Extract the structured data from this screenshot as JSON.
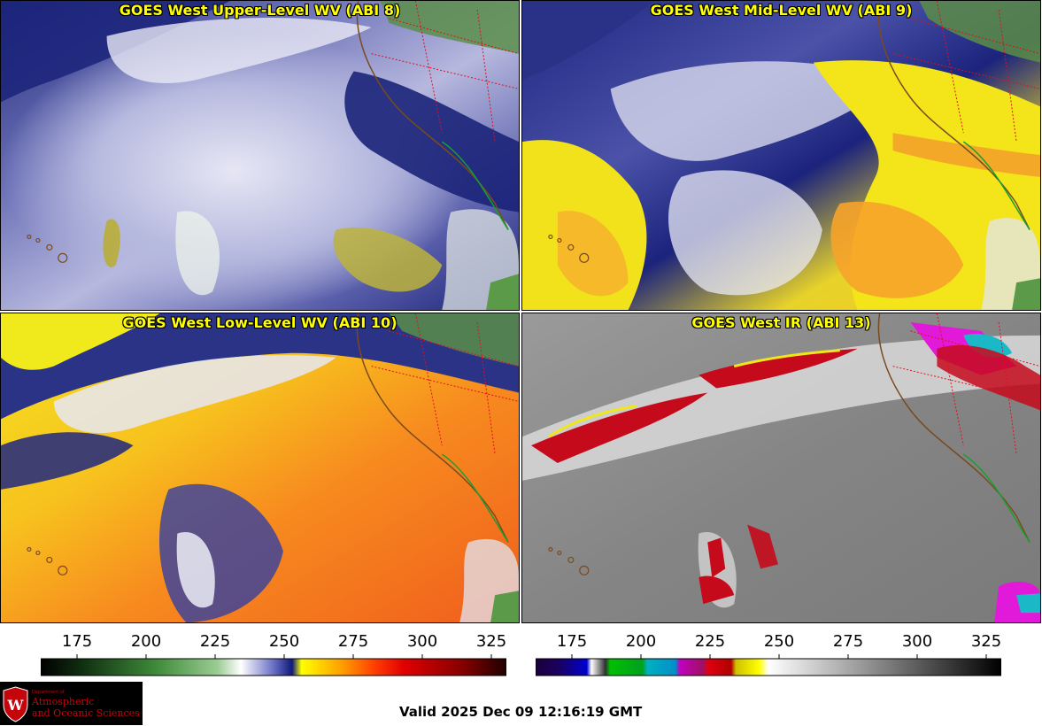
{
  "panels": {
    "upper_left": {
      "title": "GOES West Upper-Level WV (ABI 8)"
    },
    "upper_right": {
      "title": "GOES West Mid-Level WV (ABI 9)"
    },
    "lower_left": {
      "title": "GOES West Low-Level WV (ABI 10)"
    },
    "lower_right": {
      "title": "GOES West IR (ABI 13)"
    }
  },
  "scales": {
    "left": {
      "ticks": [
        "175",
        "200",
        "225",
        "250",
        "275",
        "300",
        "325"
      ],
      "colormap": "water-vapor"
    },
    "right": {
      "ticks": [
        "175",
        "200",
        "225",
        "250",
        "275",
        "300",
        "325"
      ],
      "colormap": "infrared"
    }
  },
  "logo": {
    "department_of": "Department of",
    "line1": "Atmospheric",
    "line2": "and Oceanic Sciences",
    "seal_letter": "W"
  },
  "footer": {
    "valid_time": "Valid 2025 Dec 09 12:16:19 GMT"
  },
  "colors": {
    "title_text": "#ffff00",
    "logo_red": "#c5050c"
  }
}
